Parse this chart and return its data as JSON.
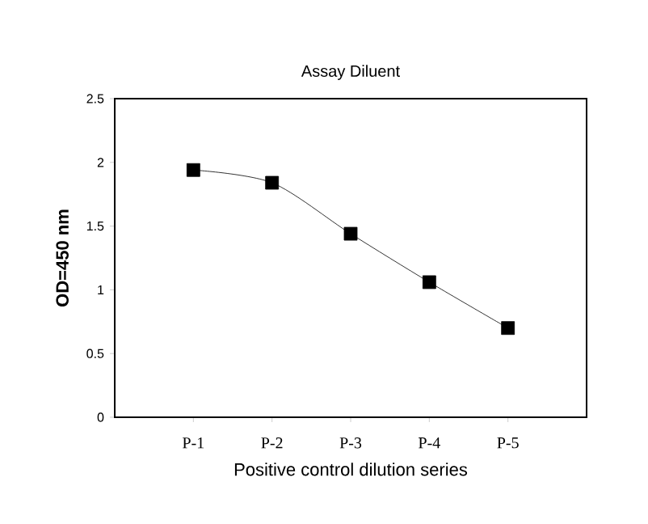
{
  "chart_data": {
    "type": "line",
    "title": "Assay Diluent",
    "xlabel": "Positive control dilution series",
    "ylabel": "OD=450 nm",
    "categories": [
      "P-1",
      "P-2",
      "P-3",
      "P-4",
      "P-5"
    ],
    "series": [
      {
        "color": "#000000",
        "values": [
          1.94,
          1.84,
          1.44,
          1.06,
          0.7
        ]
      }
    ],
    "ylim": [
      0,
      2.5
    ],
    "yticks": [
      0,
      0.5,
      1,
      1.5,
      2,
      2.5
    ],
    "marker": "square",
    "line_style": "solid",
    "grid": false
  }
}
